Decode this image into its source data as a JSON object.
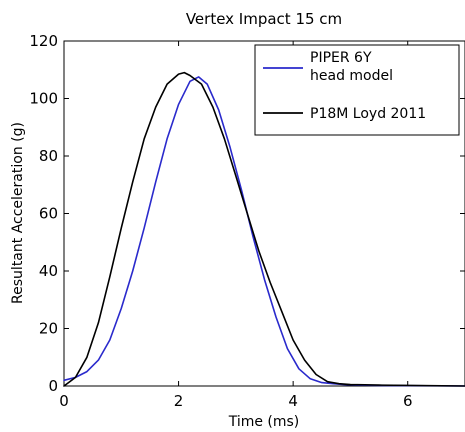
{
  "chart_data": {
    "type": "line",
    "title": "Vertex Impact 15 cm",
    "xlabel": "Time (ms)",
    "ylabel": "Resultant Acceleration (g)",
    "xlim": [
      0,
      7
    ],
    "ylim": [
      0,
      120
    ],
    "xticks": [
      0,
      2,
      4,
      6
    ],
    "yticks": [
      0,
      20,
      40,
      60,
      80,
      100,
      120
    ],
    "grid": false,
    "legend_position": "top-right",
    "series": [
      {
        "name": "PIPER 6Y head model",
        "color": "#2a2acc",
        "x": [
          0,
          0.2,
          0.4,
          0.6,
          0.8,
          1.0,
          1.2,
          1.4,
          1.6,
          1.8,
          2.0,
          2.2,
          2.35,
          2.5,
          2.7,
          2.9,
          3.1,
          3.3,
          3.5,
          3.7,
          3.9,
          4.1,
          4.3,
          4.5,
          4.7,
          4.9,
          5.1,
          5.5,
          6.0,
          7.0
        ],
        "y": [
          2,
          3,
          5,
          9,
          16,
          27,
          40,
          55,
          71,
          86,
          98,
          106,
          107.5,
          105,
          96,
          83,
          68,
          52,
          37,
          24,
          13,
          6,
          2.5,
          1.2,
          0.8,
          0.5,
          0.3,
          0.2,
          0.1,
          0
        ]
      },
      {
        "name": "P18M Loyd 2011",
        "color": "#000000",
        "x": [
          0,
          0.2,
          0.4,
          0.6,
          0.8,
          1.0,
          1.2,
          1.4,
          1.6,
          1.8,
          2.0,
          2.1,
          2.2,
          2.4,
          2.6,
          2.8,
          3.0,
          3.2,
          3.4,
          3.6,
          3.8,
          4.0,
          4.2,
          4.4,
          4.6,
          4.8,
          5.0,
          5.5,
          6.0,
          7.0
        ],
        "y": [
          0,
          3,
          10,
          22,
          38,
          55,
          71,
          86,
          97,
          105,
          108.5,
          109,
          108,
          105,
          97,
          86,
          73,
          60,
          47,
          36,
          26,
          16,
          9,
          4,
          1.5,
          0.8,
          0.5,
          0.3,
          0.2,
          0
        ]
      }
    ]
  }
}
